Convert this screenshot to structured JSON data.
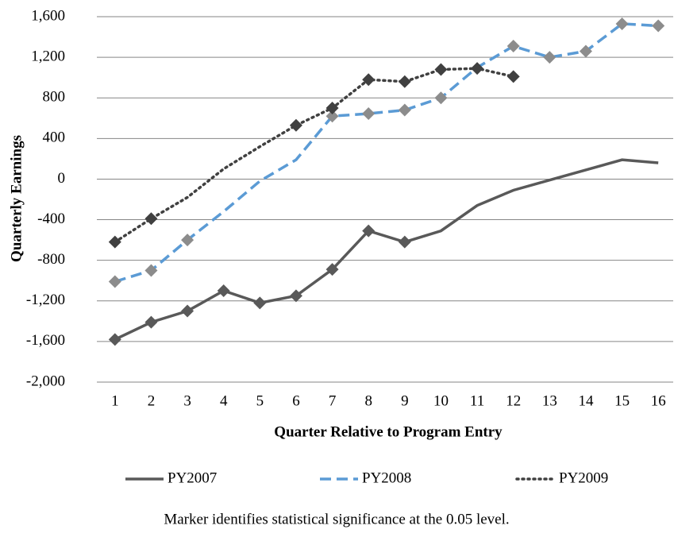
{
  "chart_data": {
    "type": "line",
    "x_label": "Quarter Relative to Program Entry",
    "y_label": "Quarterly Earnings",
    "note": "Marker identifies statistical significance at the 0.05 level.",
    "x": [
      1,
      2,
      3,
      4,
      5,
      6,
      7,
      8,
      9,
      10,
      11,
      12,
      13,
      14,
      15,
      16
    ],
    "xlim": [
      0.5,
      16.5
    ],
    "ylim": [
      -2000,
      1600
    ],
    "yticks": [
      {
        "value": -2000,
        "label": "-2,000"
      },
      {
        "value": -1600,
        "label": "-1,600"
      },
      {
        "value": -1200,
        "label": "-1,200"
      },
      -800,
      -400,
      0,
      400,
      800,
      {
        "value": 1200,
        "label": "1,200"
      },
      {
        "value": 1600,
        "label": "1,600"
      }
    ],
    "grid": true,
    "legend": "bottom",
    "series": [
      {
        "name": "PY2007",
        "color": "#595959",
        "dash": "solid",
        "marker_color": "#595959",
        "values": [
          -1580,
          -1410,
          -1300,
          -1100,
          -1220,
          -1150,
          -890,
          -510,
          -620,
          -510,
          -260,
          -110,
          -10,
          90,
          190,
          160
        ],
        "significant": [
          true,
          true,
          true,
          true,
          true,
          true,
          true,
          true,
          true,
          false,
          false,
          false,
          false,
          false,
          false,
          false
        ]
      },
      {
        "name": "PY2008",
        "color": "#5b9bd5",
        "dash": "dashed",
        "marker_color": "#8c8c8c",
        "values": [
          -1010,
          -900,
          -600,
          -320,
          -20,
          190,
          620,
          645,
          680,
          800,
          1100,
          1310,
          1200,
          1260,
          1530,
          1510
        ],
        "significant": [
          true,
          true,
          true,
          false,
          false,
          false,
          true,
          true,
          true,
          true,
          false,
          true,
          true,
          true,
          true,
          true
        ]
      },
      {
        "name": "PY2009",
        "color": "#404040",
        "dash": "dotted",
        "marker_color": "#404040",
        "values": [
          -620,
          -390,
          -180,
          100,
          320,
          530,
          700,
          980,
          960,
          1080,
          1090,
          1010,
          null,
          null,
          null,
          null
        ],
        "significant": [
          true,
          true,
          false,
          false,
          false,
          true,
          true,
          true,
          true,
          true,
          true,
          true,
          false,
          false,
          false,
          false
        ]
      }
    ]
  }
}
